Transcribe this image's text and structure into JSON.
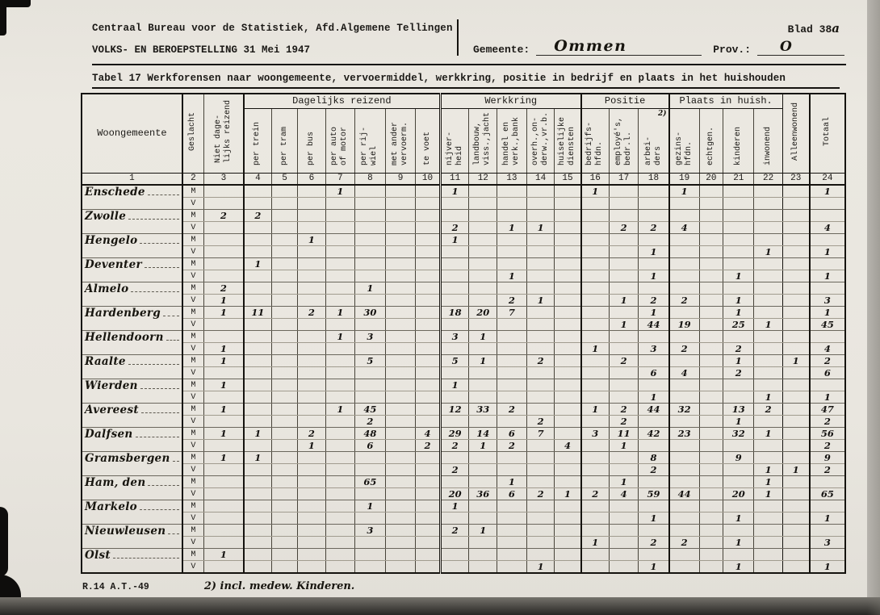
{
  "header": {
    "line1": "Centraal Bureau voor de Statistiek, Afd.Algemene Tellingen",
    "line2": "VOLKS- EN BEROEPSTELLING 31 Mei 1947",
    "gemeente_label": "Gemeente:",
    "gemeente_value": "Ommen",
    "prov_label": "Prov.:",
    "prov_value": "O",
    "blad_label": "Blad 38",
    "blad_suffix": "a"
  },
  "table_title": "Tabel 17 Werkforensen naar woongemeente, vervoermiddel, werkkring, positie in bedrijf en plaats in het huishouden",
  "table": {
    "groups": [
      {
        "label": "Dagelijks reizend",
        "span": 7
      },
      {
        "label": "Werkkring",
        "span": 5
      },
      {
        "label": "Positie",
        "span": 3
      },
      {
        "label": "Plaats in huish.",
        "span": 4
      }
    ],
    "columns": [
      {
        "n": "1",
        "label": "Woongemeente"
      },
      {
        "n": "2",
        "label": "Geslacht"
      },
      {
        "n": "3",
        "label": "Niet dage-\nlijks reizend"
      },
      {
        "n": "4",
        "label": "per trein"
      },
      {
        "n": "5",
        "label": "per tram"
      },
      {
        "n": "6",
        "label": "per bus"
      },
      {
        "n": "7",
        "label": "per auto\nof motor"
      },
      {
        "n": "8",
        "label": "per rij-\nwiel"
      },
      {
        "n": "9",
        "label": "met ander\nvervoerm."
      },
      {
        "n": "10",
        "label": "te voet"
      },
      {
        "n": "11",
        "label": "nijver-\nheid"
      },
      {
        "n": "12",
        "label": "landbouw,\nviss.,jacht"
      },
      {
        "n": "13",
        "label": "handel en\nverk.,bank"
      },
      {
        "n": "14",
        "label": "overh.,on-\nderw.,vr.b."
      },
      {
        "n": "15",
        "label": "huiselijke\ndiensten"
      },
      {
        "n": "16",
        "label": "bedrijfs-\nhfdn."
      },
      {
        "n": "17",
        "label": "employé's,\nbedr.l."
      },
      {
        "n": "18",
        "label": "arbei-\nders",
        "note": "2)"
      },
      {
        "n": "19",
        "label": "gezins-\nhfdn."
      },
      {
        "n": "20",
        "label": "echtgen."
      },
      {
        "n": "21",
        "label": "kinderen"
      },
      {
        "n": "22",
        "label": "inwonend"
      },
      {
        "n": "23",
        "label": "Alleenwonend"
      },
      {
        "n": "24",
        "label": "Totaal"
      }
    ],
    "sex_labels": {
      "male": "M",
      "female": "V"
    },
    "rows": [
      {
        "name": "Enschede",
        "m": {
          "7": "1",
          "11": "1",
          "16": "1",
          "19": "1",
          "24": "1"
        },
        "v": {}
      },
      {
        "name": "Zwolle",
        "m": {
          "3": "2",
          "4": "2"
        },
        "v": {
          "11": "2",
          "13": "1",
          "14": "1",
          "17": "2",
          "18": "2",
          "19": "4",
          "24": "4"
        }
      },
      {
        "name": "Hengelo",
        "m": {
          "6": "1",
          "11": "1"
        },
        "v": {
          "18": "1",
          "22": "1",
          "24": "1"
        }
      },
      {
        "name": "Deventer",
        "m": {
          "4": "1"
        },
        "v": {
          "13": "1",
          "18": "1",
          "21": "1",
          "24": "1"
        }
      },
      {
        "name": "Almelo",
        "m": {
          "3": "2",
          "8": "1"
        },
        "v": {
          "3": "1",
          "13": "2",
          "14": "1",
          "17": "1",
          "18": "2",
          "19": "2",
          "21": "1",
          "24": "3"
        }
      },
      {
        "name": "Hardenberg",
        "m": {
          "3": "1",
          "4": "11",
          "6": "2",
          "7": "1",
          "8": "30",
          "11": "18",
          "12": "20",
          "13": "7",
          "18": "1",
          "21": "1",
          "24": "1"
        },
        "v": {
          "17": "1",
          "18": "44",
          "19": "19",
          "21": "25",
          "22": "1",
          "24": "45"
        }
      },
      {
        "name": "Hellendoorn",
        "m": {
          "7": "1",
          "8": "3",
          "11": "3",
          "12": "1"
        },
        "v": {
          "3": "1",
          "16": "1",
          "18": "3",
          "19": "2",
          "21": "2",
          "24": "4"
        }
      },
      {
        "name": "Raalte",
        "m": {
          "3": "1",
          "8": "5",
          "11": "5",
          "12": "1",
          "14": "2",
          "17": "2",
          "21": "1",
          "23": "1",
          "24": "2"
        },
        "v": {
          "18": "6",
          "19": "4",
          "21": "2",
          "24": "6"
        }
      },
      {
        "name": "Wierden",
        "m": {
          "3": "1",
          "11": "1"
        },
        "v": {
          "18": "1",
          "22": "1",
          "24": "1"
        }
      },
      {
        "name": "Avereest",
        "m": {
          "3": "1",
          "7": "1",
          "8": "45",
          "11": "12",
          "12": "33",
          "13": "2",
          "16": "1",
          "17": "2",
          "18": "44",
          "19": "32",
          "21": "13",
          "22": "2",
          "24": "47"
        },
        "v": {
          "8": "2",
          "14": "2",
          "17": "2",
          "21": "1",
          "24": "2"
        }
      },
      {
        "name": "Dalfsen",
        "m": {
          "3": "1",
          "4": "1",
          "6": "2",
          "8": "48",
          "10": "4",
          "11": "29",
          "12": "14",
          "13": "6",
          "14": "7",
          "16": "3",
          "17": "11",
          "18": "42",
          "19": "23",
          "21": "32",
          "22": "1",
          "24": "56"
        },
        "v": {
          "6": "1",
          "8": "6",
          "10": "2",
          "11": "2",
          "12": "1",
          "13": "2",
          "15": "4",
          "17": "1",
          "24": "2"
        }
      },
      {
        "name": "Gramsbergen",
        "m": {
          "3": "1",
          "4": "1",
          "18": "8",
          "21": "9",
          "24": "9"
        },
        "v": {
          "11": "2",
          "18": "2",
          "22": "1",
          "23": "1",
          "24": "2"
        }
      },
      {
        "name": "Ham, den",
        "m": {
          "8": "65",
          "13": "1",
          "17": "1",
          "22": "1"
        },
        "v": {
          "11": "20",
          "12": "36",
          "13": "6",
          "14": "2",
          "15": "1",
          "16": "2",
          "17": "4",
          "18": "59",
          "19": "44",
          "21": "20",
          "22": "1",
          "24": "65"
        }
      },
      {
        "name": "Markelo",
        "m": {
          "8": "1",
          "11": "1"
        },
        "v": {
          "18": "1",
          "21": "1",
          "24": "1"
        }
      },
      {
        "name": "Nieuwleusen",
        "m": {
          "8": "3",
          "11": "2",
          "12": "1"
        },
        "v": {
          "16": "1",
          "18": "2",
          "19": "2",
          "21": "1",
          "24": "3"
        }
      },
      {
        "name": "Olst",
        "m": {
          "3": "1"
        },
        "v": {
          "14": "1",
          "18": "1",
          "21": "1",
          "24": "1"
        }
      }
    ]
  },
  "footer": {
    "form_code": "R.14 A.T.-49",
    "note": "2) incl. medew. Kinderen."
  }
}
